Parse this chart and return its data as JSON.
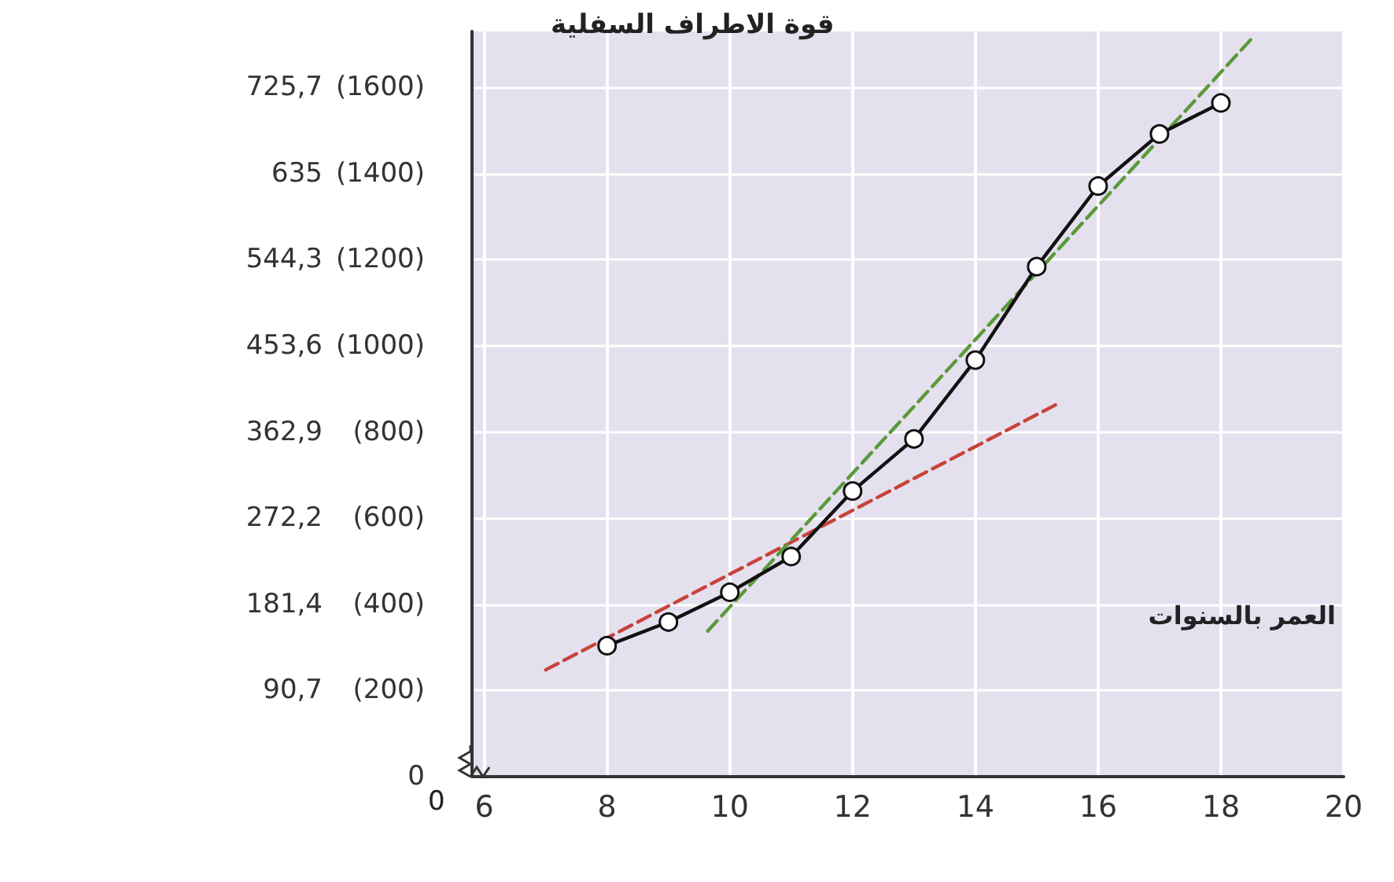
{
  "chart_data": {
    "type": "line",
    "xlabel": "العمر بالسنوات",
    "y2label": "قوة الاطراف السفلية",
    "annotations": [
      "0"
    ],
    "xlim": [
      5.8,
      20
    ],
    "xticks": [
      6,
      8,
      10,
      12,
      14,
      16,
      18,
      20
    ],
    "ylim": [
      0,
      784.7
    ],
    "yticks": [
      {
        "value": 90.7,
        "label": "90,7"
      },
      {
        "value": 181.4,
        "label": "181,4"
      },
      {
        "value": 272.2,
        "label": "272,2"
      },
      {
        "value": 362.9,
        "label": "362,9"
      },
      {
        "value": 453.6,
        "label": "453,6"
      },
      {
        "value": 544.3,
        "label": "544,3"
      },
      635,
      {
        "value": 725.7,
        "label": "725,7"
      }
    ],
    "y2lim": [
      0,
      1730
    ],
    "y2ticks": [
      0,
      {
        "value": 200,
        "label": "(200)"
      },
      {
        "value": 400,
        "label": "(400)"
      },
      {
        "value": 600,
        "label": "(600)"
      },
      {
        "value": 800,
        "label": "(800)"
      },
      {
        "value": 1000,
        "label": "(1000)"
      },
      {
        "value": 1200,
        "label": "(1200)"
      },
      {
        "value": 1400,
        "label": "(1400)"
      },
      {
        "value": 1600,
        "label": "(1600)"
      }
    ],
    "grid": true,
    "series": [
      {
        "color": "#111111",
        "marker": "circle",
        "line_style": "solid",
        "axis": "y2",
        "x": [
          8,
          9,
          10,
          11,
          12,
          13,
          14,
          15,
          16,
          17,
          18
        ],
        "values": [
          304,
          359,
          428,
          511,
          663,
          784,
          967,
          1184,
          1371,
          1492,
          1564
        ]
      },
      {
        "color": "#c8423a",
        "marker": "none",
        "line_style": "dashed",
        "axis": "y2",
        "x": [
          7.0,
          15.4
        ],
        "values": [
          248,
          870
        ]
      },
      {
        "color": "#5a9a3a",
        "marker": "none",
        "line_style": "dashed",
        "axis": "y2",
        "x": [
          9.64,
          18.5
        ],
        "values": [
          338,
          1713
        ]
      }
    ]
  }
}
